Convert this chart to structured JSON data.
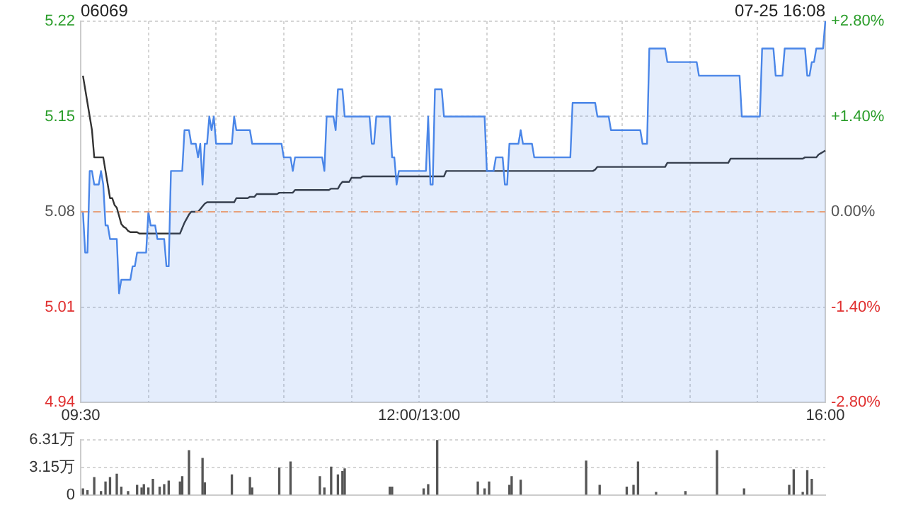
{
  "chart_data": [
    {
      "type": "line",
      "title": "06069",
      "annotations": [
        "07-25 16:08"
      ],
      "categories": [
        "09:30",
        null,
        null,
        null,
        null,
        null,
        null,
        null,
        null,
        null,
        null,
        null,
        null,
        null,
        null,
        null,
        null,
        null,
        null,
        null,
        null,
        null,
        null,
        null,
        null,
        null,
        null,
        null,
        null,
        null,
        null,
        null,
        null,
        null,
        null,
        null,
        null,
        null,
        null,
        null,
        null,
        null,
        null,
        null,
        null,
        null,
        null,
        null,
        null,
        null,
        null,
        null,
        null,
        null,
        null,
        null,
        null,
        null,
        null,
        null,
        null,
        null,
        null,
        null,
        null,
        null,
        null,
        null,
        null,
        null,
        null,
        null,
        null,
        null,
        null,
        null,
        null,
        null,
        null,
        null,
        null,
        null,
        null,
        null,
        null,
        null,
        null,
        null,
        null,
        null,
        null,
        null,
        null,
        null,
        null,
        null,
        null,
        null,
        null,
        null,
        null,
        null,
        null,
        null,
        null,
        null,
        null,
        null,
        null,
        null,
        null,
        null,
        null,
        null,
        null,
        null,
        null,
        null,
        null,
        null,
        null,
        null,
        null,
        null,
        null,
        null,
        null,
        null,
        null,
        null,
        null,
        null,
        null,
        null,
        null,
        null,
        null,
        null,
        null,
        null,
        null,
        null,
        null,
        null,
        null,
        null,
        null,
        null,
        null,
        null,
        "12:00/13:00",
        null,
        null,
        null,
        null,
        null,
        null,
        null,
        null,
        null,
        null,
        null,
        null,
        null,
        null,
        null,
        null,
        null,
        null,
        null,
        null,
        null,
        null,
        null,
        null,
        null,
        null,
        null,
        null,
        null,
        null,
        null,
        null,
        null,
        null,
        null,
        null,
        null,
        null,
        null,
        null,
        null,
        null,
        null,
        null,
        null,
        null,
        null,
        null,
        null,
        null,
        null,
        null,
        null,
        null,
        null,
        null,
        null,
        null,
        null,
        null,
        null,
        null,
        null,
        null,
        null,
        null,
        null,
        null,
        null,
        null,
        null,
        null,
        null,
        null,
        null,
        null,
        null,
        null,
        null,
        null,
        null,
        null,
        null,
        null,
        null,
        null,
        null,
        null,
        null,
        null,
        null,
        null,
        null,
        null,
        null,
        null,
        null,
        null,
        null,
        null,
        null,
        null,
        null,
        null,
        null,
        null,
        null,
        null,
        null,
        null,
        null,
        null,
        null,
        null,
        null,
        null,
        null,
        null,
        null,
        null,
        null,
        null,
        null,
        null,
        null,
        null,
        null,
        null,
        null,
        null,
        null,
        null,
        null,
        null,
        null,
        null,
        null,
        null,
        null,
        null,
        null,
        null,
        null,
        null,
        null,
        null,
        null,
        null,
        null,
        null,
        null,
        null,
        null,
        null,
        null,
        null,
        null,
        null,
        null,
        null,
        null,
        null,
        null,
        null,
        null,
        null,
        null,
        null,
        null,
        null,
        null,
        null,
        null,
        null,
        null,
        null,
        null,
        null,
        null,
        "16:00"
      ],
      "ylim": [
        4.94,
        5.22
      ],
      "yticks": [
        4.94,
        5.01,
        5.08,
        5.15,
        5.22
      ],
      "y2lim": [
        -2.8,
        2.8
      ],
      "y2ticks": [
        {
          "value": -2.8,
          "label": "-2.80%"
        },
        {
          "value": -1.4,
          "label": "-1.40%"
        },
        {
          "value": 0,
          "label": "0.00%"
        },
        {
          "value": 1.4,
          "label": "+1.40%"
        },
        {
          "value": 2.8,
          "label": "+2.80%"
        }
      ],
      "ref_lines": [
        {
          "axis": "y",
          "value": 5.08,
          "label": null,
          "color": "#e8a07a",
          "line_style": "dashed"
        }
      ],
      "grid": true,
      "legend": false,
      "marker": "none",
      "series": [
        {
          "type": "area",
          "color": "#4a86e8",
          "values": [
            5.08,
            5.08,
            5.05,
            5.05,
            5.11,
            5.11,
            5.1,
            5.1,
            5.1,
            5.11,
            5.1,
            5.07,
            5.07,
            5.06,
            5.06,
            5.06,
            5.06,
            5.02,
            5.03,
            5.03,
            5.03,
            5.03,
            5.03,
            5.04,
            5.04,
            5.05,
            5.05,
            5.05,
            5.05,
            5.05,
            5.08,
            5.07,
            5.07,
            5.07,
            5.06,
            5.06,
            5.06,
            5.06,
            5.04,
            5.04,
            5.11,
            5.11,
            5.11,
            5.11,
            5.11,
            5.11,
            5.14,
            5.14,
            5.14,
            5.13,
            5.13,
            5.13,
            5.12,
            5.13,
            5.1,
            5.13,
            5.13,
            5.15,
            5.14,
            5.15,
            5.13,
            5.13,
            5.13,
            5.13,
            5.13,
            5.13,
            5.13,
            5.13,
            5.15,
            5.14,
            5.14,
            5.14,
            5.14,
            5.14,
            5.14,
            5.14,
            5.13,
            5.13,
            5.13,
            5.13,
            5.13,
            5.13,
            5.13,
            5.13,
            5.13,
            5.13,
            5.13,
            5.13,
            5.13,
            5.13,
            5.12,
            5.12,
            5.12,
            5.12,
            5.11,
            5.12,
            5.12,
            5.12,
            5.12,
            5.12,
            5.12,
            5.12,
            5.12,
            5.12,
            5.12,
            5.12,
            5.12,
            5.12,
            5.11,
            5.15,
            5.15,
            5.15,
            5.15,
            5.14,
            5.17,
            5.17,
            5.17,
            5.15,
            5.15,
            5.15,
            5.15,
            5.15,
            5.15,
            5.15,
            5.15,
            5.15,
            5.15,
            5.15,
            5.15,
            5.13,
            5.13,
            5.15,
            5.15,
            5.15,
            5.15,
            5.15,
            5.15,
            5.15,
            5.12,
            5.12,
            5.1,
            5.11,
            5.11,
            5.11,
            5.11,
            5.11,
            5.11,
            5.11,
            5.11,
            5.11,
            5.11,
            5.11,
            5.11,
            5.11,
            5.15,
            5.1,
            5.1,
            5.17,
            5.17,
            5.17,
            5.17,
            5.15,
            5.15,
            5.15,
            5.15,
            5.15,
            5.15,
            5.15,
            5.15,
            5.15,
            5.15,
            5.15,
            5.15,
            5.15,
            5.15,
            5.15,
            5.15,
            5.15,
            5.15,
            5.15,
            5.11,
            5.11,
            5.11,
            5.11,
            5.12,
            5.12,
            5.12,
            5.12,
            5.1,
            5.1,
            5.13,
            5.13,
            5.13,
            5.13,
            5.13,
            5.14,
            5.13,
            5.13,
            5.13,
            5.13,
            5.13,
            5.12,
            5.12,
            5.12,
            5.12,
            5.12,
            5.12,
            5.12,
            5.12,
            5.12,
            5.12,
            5.12,
            5.12,
            5.12,
            5.12,
            5.12,
            5.12,
            5.12,
            5.16,
            5.16,
            5.16,
            5.16,
            5.16,
            5.16,
            5.16,
            5.16,
            5.16,
            5.16,
            5.16,
            5.15,
            5.15,
            5.15,
            5.15,
            5.15,
            5.15,
            5.14,
            5.14,
            5.14,
            5.14,
            5.14,
            5.14,
            5.14,
            5.14,
            5.14,
            5.14,
            5.14,
            5.14,
            5.14,
            5.14,
            5.13,
            5.13,
            5.13,
            5.2,
            5.2,
            5.2,
            5.2,
            5.2,
            5.2,
            5.2,
            5.2,
            5.19,
            5.19,
            5.19,
            5.19,
            5.19,
            5.19,
            5.19,
            5.19,
            5.19,
            5.19,
            5.19,
            5.19,
            5.19,
            5.19,
            5.18,
            5.18,
            5.18,
            5.18,
            5.18,
            5.18,
            5.18,
            5.18,
            5.18,
            5.18,
            5.18,
            5.18,
            5.18,
            5.18,
            5.18,
            5.18,
            5.18,
            5.18,
            5.18,
            5.15,
            5.15,
            5.15,
            5.15,
            5.15,
            5.15,
            5.15,
            5.15,
            5.15,
            5.2,
            5.2,
            5.2,
            5.2,
            5.2,
            5.2,
            5.18,
            5.18,
            5.18,
            5.18,
            5.2,
            5.2,
            5.2,
            5.2,
            5.2,
            5.2,
            5.2,
            5.2,
            5.2,
            5.2,
            5.18,
            5.18,
            5.19,
            5.19,
            5.2,
            5.2,
            5.2,
            5.2,
            5.22
          ]
        },
        {
          "type": "line",
          "color": "#333333",
          "values": [
            null,
            5.18,
            5.17,
            5.16,
            5.15,
            5.14,
            5.12,
            5.12,
            5.12,
            5.12,
            5.12,
            5.11,
            5.1,
            5.09,
            5.09,
            5.085,
            5.083,
            5.077,
            5.071,
            5.069,
            5.068,
            5.066,
            5.065,
            5.065,
            5.065,
            5.065,
            5.064,
            5.064,
            5.064,
            5.064,
            5.064,
            5.064,
            5.064,
            5.064,
            5.064,
            5.064,
            5.064,
            5.064,
            5.064,
            5.064,
            5.064,
            5.064,
            5.064,
            5.064,
            5.064,
            5.068,
            5.072,
            5.075,
            5.078,
            5.08,
            5.08,
            5.08,
            5.08,
            5.082,
            5.084,
            5.086,
            5.087,
            5.087,
            5.087,
            5.087,
            5.087,
            5.087,
            5.087,
            5.087,
            5.087,
            5.087,
            5.087,
            5.087,
            5.087,
            5.09,
            5.09,
            5.09,
            5.09,
            5.09,
            5.09,
            5.091,
            5.091,
            5.091,
            5.093,
            5.093,
            5.093,
            5.093,
            5.093,
            5.093,
            5.093,
            5.093,
            5.093,
            5.093,
            5.094,
            5.094,
            5.094,
            5.094,
            5.094,
            5.094,
            5.094,
            5.096,
            5.096,
            5.096,
            5.096,
            5.096,
            5.096,
            5.096,
            5.096,
            5.096,
            5.096,
            5.096,
            5.096,
            5.096,
            5.096,
            5.096,
            5.096,
            5.097,
            5.097,
            5.097,
            5.097,
            5.1,
            5.102,
            5.102,
            5.102,
            5.102,
            5.105,
            5.105,
            5.105,
            5.105,
            5.105,
            5.106,
            5.106,
            5.106,
            5.106,
            5.106,
            5.106,
            5.106,
            5.106,
            5.106,
            5.106,
            5.106,
            5.106,
            5.106,
            5.106,
            5.106,
            5.106,
            5.106,
            5.106,
            5.106,
            5.106,
            5.106,
            5.106,
            5.106,
            5.106,
            5.106,
            5.106,
            5.106,
            5.106,
            5.106,
            5.106,
            5.106,
            5.106,
            5.106,
            5.106,
            5.106,
            5.106,
            5.106,
            5.11,
            5.11,
            5.11,
            5.11,
            5.11,
            5.11,
            5.11,
            5.11,
            5.11,
            5.11,
            5.11,
            5.11,
            5.11,
            5.11,
            5.11,
            5.11,
            5.11,
            5.11,
            5.11,
            5.11,
            5.11,
            5.11,
            5.11,
            5.11,
            5.11,
            5.11,
            5.11,
            5.11,
            5.11,
            5.11,
            5.11,
            5.11,
            5.11,
            5.11,
            5.11,
            5.11,
            5.11,
            5.11,
            5.11,
            5.11,
            5.11,
            5.11,
            5.11,
            5.11,
            5.11,
            5.11,
            5.11,
            5.11,
            5.11,
            5.11,
            5.11,
            5.11,
            5.11,
            5.11,
            5.11,
            5.11,
            5.11,
            5.11,
            5.11,
            5.11,
            5.11,
            5.11,
            5.11,
            5.11,
            5.11,
            5.11,
            5.111,
            5.113,
            5.113,
            5.113,
            5.113,
            5.113,
            5.113,
            5.113,
            5.113,
            5.113,
            5.113,
            5.113,
            5.113,
            5.113,
            5.113,
            5.113,
            5.113,
            5.113,
            5.113,
            5.113,
            5.113,
            5.113,
            5.113,
            5.113,
            5.113,
            5.113,
            5.113,
            5.113,
            5.113,
            5.113,
            5.113,
            5.113,
            5.116,
            5.116,
            5.116,
            5.116,
            5.116,
            5.116,
            5.116,
            5.116,
            5.116,
            5.116,
            5.116,
            5.116,
            5.116,
            5.116,
            5.116,
            5.116,
            5.116,
            5.116,
            5.116,
            5.116,
            5.116,
            5.116,
            5.116,
            5.116,
            5.116,
            5.116,
            5.116,
            5.116,
            5.119,
            5.119,
            5.119,
            5.119,
            5.119,
            5.119,
            5.119,
            5.119,
            5.119,
            5.119,
            5.119,
            5.119,
            5.119,
            5.119,
            5.119,
            5.119,
            5.119,
            5.119,
            5.119,
            5.119,
            5.119,
            5.119,
            5.119,
            5.119,
            5.119,
            5.119,
            5.119,
            5.119,
            5.119,
            5.119,
            5.119,
            5.119,
            5.119,
            5.12,
            5.12,
            5.12,
            5.12,
            5.12,
            5.12,
            5.122,
            5.123,
            5.124,
            5.125
          ]
        }
      ]
    },
    {
      "type": "bar",
      "categories": [
        null,
        null,
        null,
        null,
        null,
        null,
        null,
        null,
        null,
        null,
        null,
        null,
        null,
        null,
        null,
        null,
        null,
        null,
        null,
        null,
        null,
        null,
        null,
        null,
        null,
        null,
        null,
        null,
        null,
        null,
        null,
        null,
        null,
        null,
        null,
        null,
        null,
        null,
        null,
        null,
        null,
        null,
        null,
        null,
        null,
        null,
        null,
        null,
        null,
        null,
        null,
        null,
        null,
        null,
        null,
        null,
        null,
        null,
        null,
        null,
        null,
        null,
        null,
        null,
        null,
        null,
        null,
        null,
        null,
        null,
        null,
        null,
        null,
        null,
        null,
        null,
        null,
        null,
        null,
        null,
        null,
        null,
        null,
        null,
        null,
        null,
        null,
        null,
        null,
        null,
        null,
        null,
        null,
        null,
        null,
        null,
        null,
        null,
        null,
        null,
        null,
        null,
        null,
        null,
        null,
        null,
        null,
        null,
        null,
        null,
        null,
        null,
        null,
        null,
        null,
        null,
        null,
        null,
        null,
        null,
        null,
        null,
        null,
        null,
        null,
        null,
        null,
        null,
        null,
        null,
        null,
        null,
        null,
        null,
        null,
        null,
        null,
        null,
        null,
        null,
        null,
        null,
        null,
        null,
        null,
        null,
        null,
        null,
        null,
        null,
        null,
        null,
        null,
        null,
        null,
        null,
        null,
        null,
        null,
        null,
        null,
        null,
        null,
        null,
        null,
        null,
        null,
        null,
        null,
        null,
        null,
        null,
        null,
        null,
        null,
        null,
        null,
        null,
        null,
        null,
        null,
        null,
        null,
        null,
        null,
        null,
        null,
        null,
        null,
        null,
        null,
        null,
        null,
        null,
        null,
        null,
        null,
        null,
        null,
        null,
        null,
        null,
        null,
        null,
        null,
        null,
        null,
        null,
        null,
        null,
        null,
        null,
        null,
        null,
        null,
        null,
        null,
        null,
        null,
        null,
        null,
        null,
        null,
        null,
        null,
        null,
        null,
        null,
        null,
        null,
        null,
        null,
        null,
        null,
        null,
        null,
        null,
        null,
        null,
        null,
        null,
        null,
        null,
        null,
        null,
        null,
        null,
        null,
        null,
        null,
        null,
        null,
        null,
        null,
        null,
        null,
        null,
        null,
        null,
        null,
        null,
        null,
        null,
        null,
        null,
        null,
        null,
        null,
        null,
        null,
        null,
        null,
        null,
        null,
        null,
        null,
        null,
        null,
        null,
        null,
        null,
        null,
        null,
        null,
        null,
        null,
        null,
        null,
        null,
        null,
        null,
        null,
        null,
        null,
        null,
        null,
        null,
        null,
        null,
        null,
        null,
        null,
        null,
        null,
        null,
        null,
        null,
        null,
        null,
        null,
        null,
        null,
        null,
        null,
        null,
        null,
        null,
        null,
        null,
        null,
        null,
        null,
        null,
        null,
        null,
        null,
        null,
        null,
        null,
        null,
        null
      ],
      "ylim": [
        0,
        6.31
      ],
      "yticks": [
        0,
        {
          "value": 3.15,
          "label": "3.15万"
        },
        {
          "value": 6.31,
          "label": "6.31万"
        }
      ],
      "grid": "y",
      "legend": false,
      "tick_labels": "y",
      "series": [
        {
          "color": "#555555",
          "values": [
            null,
            0.7,
            null,
            0.5,
            null,
            null,
            2.0,
            null,
            null,
            0.4,
            null,
            1.5,
            null,
            2.0,
            null,
            null,
            2.4,
            null,
            0.9,
            null,
            null,
            0.4,
            null,
            null,
            null,
            1.1,
            null,
            0.8,
            1.2,
            null,
            0.8,
            null,
            1.8,
            null,
            null,
            0.9,
            null,
            1.2,
            null,
            1.6,
            null,
            null,
            null,
            null,
            1.5,
            2.1,
            null,
            null,
            5.1,
            null,
            null,
            null,
            null,
            null,
            4.2,
            1.4,
            null,
            null,
            null,
            null,
            null,
            null,
            null,
            null,
            null,
            null,
            null,
            2.3,
            null,
            null,
            null,
            null,
            null,
            null,
            null,
            2.0,
            0.8,
            null,
            null,
            null,
            null,
            null,
            null,
            null,
            null,
            null,
            null,
            null,
            3.1,
            null,
            null,
            null,
            null,
            3.8,
            null,
            null,
            null,
            null,
            null,
            null,
            null,
            null,
            null,
            null,
            null,
            null,
            2.1,
            null,
            0.8,
            null,
            null,
            3.2,
            null,
            null,
            2.3,
            null,
            2.7,
            3.0,
            null,
            null,
            null,
            null,
            null,
            null,
            null,
            null,
            null,
            null,
            null,
            null,
            null,
            null,
            null,
            null,
            null,
            null,
            null,
            0.9,
            0.9,
            null,
            null,
            null,
            null,
            null,
            null,
            null,
            null,
            null,
            null,
            null,
            null,
            null,
            0.7,
            null,
            1.2,
            null,
            null,
            null,
            6.3,
            null,
            null,
            null,
            null,
            null,
            null,
            null,
            null,
            null,
            null,
            null,
            null,
            null,
            null,
            null,
            null,
            null,
            1.5,
            null,
            null,
            0.7,
            null,
            1.5,
            null,
            null,
            null,
            null,
            null,
            null,
            null,
            null,
            1.1,
            2.1,
            null,
            null,
            null,
            1.7,
            null,
            null,
            null,
            null,
            null,
            null,
            null,
            null,
            null,
            null,
            null,
            null,
            null,
            null,
            null,
            null,
            null,
            null,
            null,
            null,
            null,
            null,
            null,
            null,
            null,
            null,
            null,
            null,
            3.9,
            null,
            null,
            null,
            null,
            null,
            1.1,
            null,
            null,
            null,
            null,
            null,
            null,
            null,
            null,
            null,
            null,
            null,
            0.9,
            null,
            null,
            1.1,
            null,
            3.8,
            null,
            null,
            null,
            null,
            null,
            null,
            null,
            0.3,
            null,
            null,
            null,
            null,
            null,
            null,
            null,
            null,
            null,
            null,
            null,
            null,
            0.4,
            null,
            null,
            null,
            null,
            null,
            null,
            null,
            null,
            null,
            null,
            null,
            null,
            null,
            5.1,
            null,
            null,
            null,
            null,
            null,
            null,
            null,
            null,
            null,
            null,
            null,
            0.7,
            null,
            null,
            null,
            null,
            null,
            null,
            null,
            null,
            null,
            null,
            null,
            null,
            null,
            null,
            null,
            null,
            null,
            null,
            null,
            1.1,
            null,
            2.9,
            null,
            null,
            null,
            0.3,
            null,
            2.8,
            null,
            1.8,
            null,
            null,
            null,
            null,
            null,
            null
          ]
        }
      ]
    }
  ]
}
